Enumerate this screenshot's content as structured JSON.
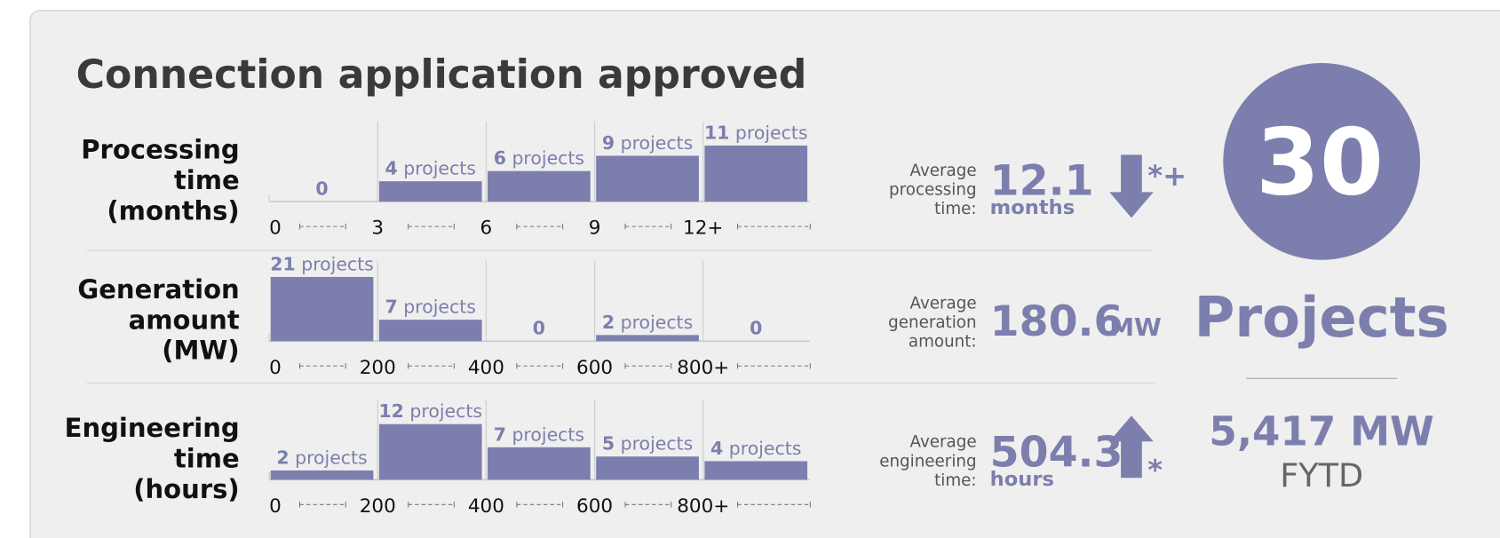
{
  "title": "Connection application approved",
  "chart_data": [
    {
      "type": "bar",
      "title": "Processing time (months)",
      "categories": [
        "0",
        "3",
        "6",
        "9",
        "12+"
      ],
      "values": [
        0,
        4,
        6,
        9,
        11
      ],
      "value_labels": [
        "0",
        "4 projects",
        "6 projects",
        "9 projects",
        "11 projects"
      ],
      "color": "#7c7fad",
      "ylim": [
        0,
        15
      ]
    },
    {
      "type": "bar",
      "title": "Generation amount (MW)",
      "categories": [
        "0",
        "200",
        "400",
        "600",
        "800+"
      ],
      "values": [
        21,
        7,
        0,
        2,
        0
      ],
      "value_labels": [
        "21 projects",
        "7 projects",
        "0",
        "2 projects",
        "0"
      ],
      "color": "#7c7fad",
      "ylim": [
        0,
        25
      ]
    },
    {
      "type": "bar",
      "title": "Engineering time (hours)",
      "categories": [
        "0",
        "200",
        "400",
        "600",
        "800+"
      ],
      "values": [
        2,
        12,
        7,
        5,
        4
      ],
      "value_labels": [
        "2 projects",
        "12 projects",
        "7 projects",
        "5 projects",
        "4 projects"
      ],
      "color": "#7c7fad",
      "ylim": [
        0,
        16.5
      ]
    }
  ],
  "stats": [
    {
      "label": "Average processing time:",
      "value": 12.1,
      "unit": "months",
      "trend": "down",
      "note": "*+"
    },
    {
      "label": "Average generation amount:",
      "value": 180.6,
      "unit": "MW"
    },
    {
      "label": "Average engineering time:",
      "value": 504.3,
      "unit": "hours",
      "trend": "up",
      "note": "*"
    }
  ],
  "summary": {
    "count": 30,
    "count_label": "Projects",
    "total": "5,417 MW",
    "period": "FYTD"
  }
}
